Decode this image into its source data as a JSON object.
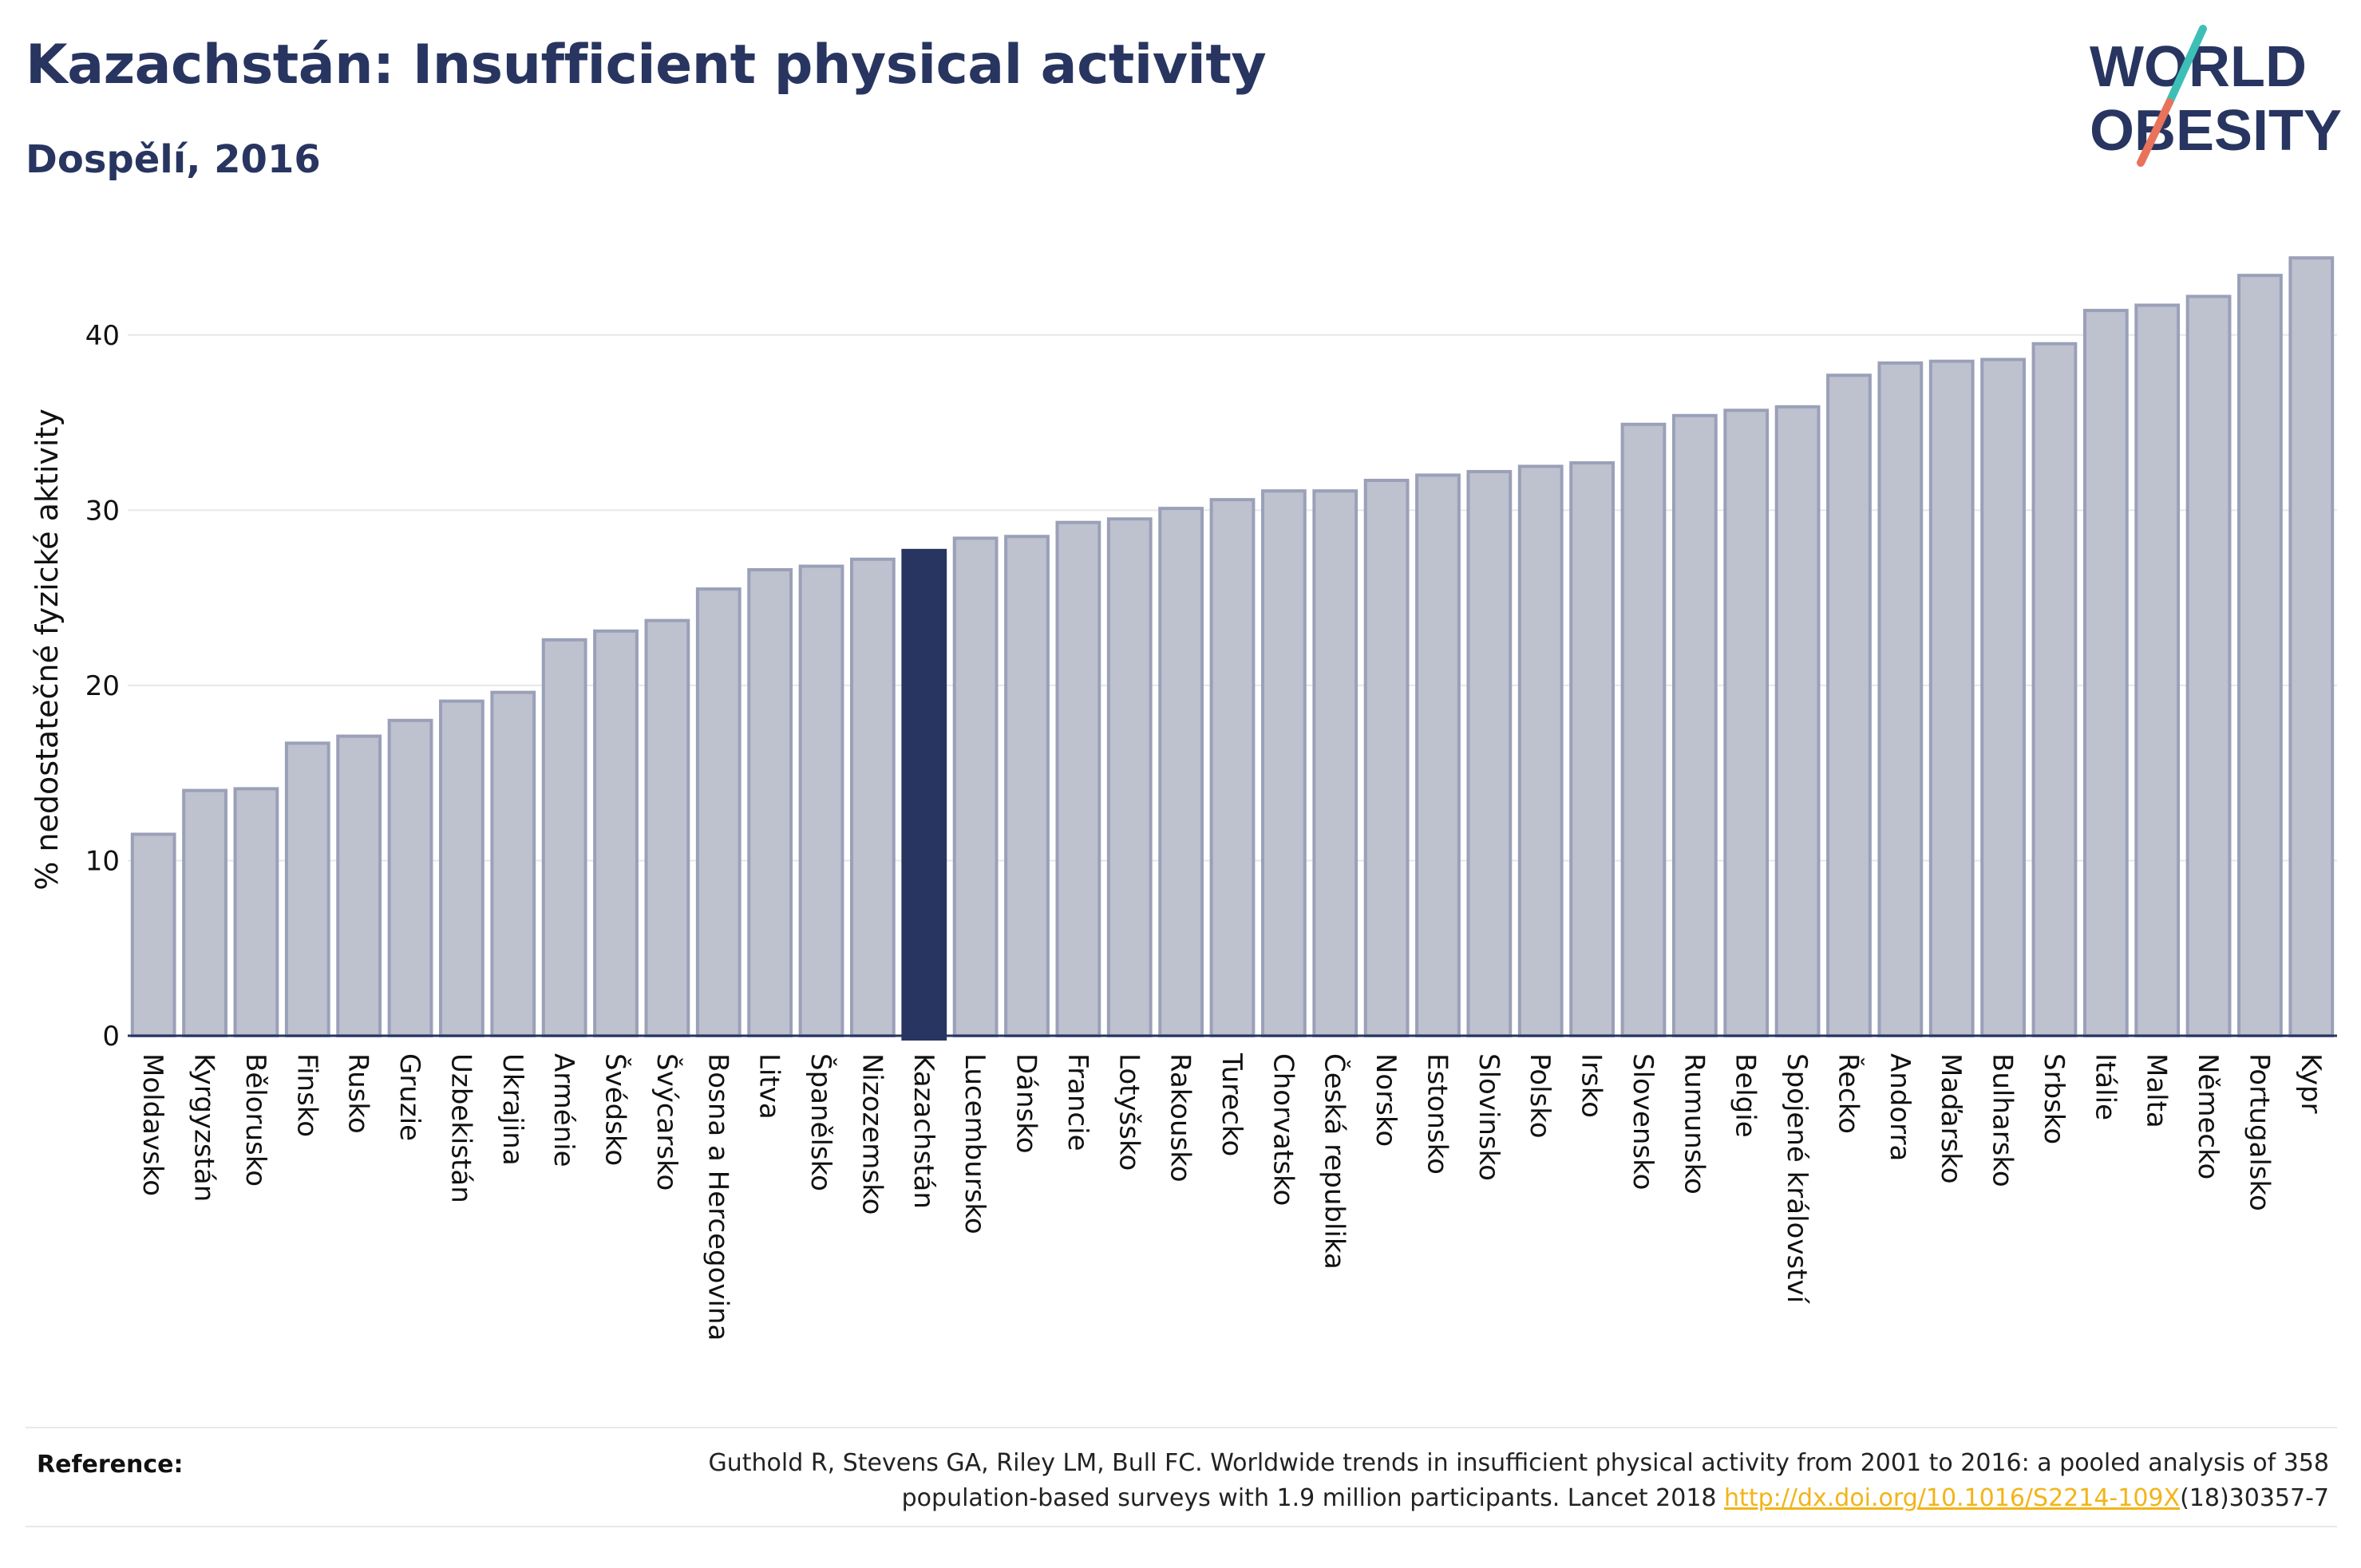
{
  "header": {
    "title": "Kazachstán: Insufficient physical activity",
    "subtitle": "Dospělí, 2016"
  },
  "logo": {
    "line1": "WORLD",
    "line2": "OBESITY",
    "colors": {
      "text": "#283560",
      "slash_top": "#3dbfb8",
      "slash_bottom": "#e8735a"
    }
  },
  "colors": {
    "bar_fill": "#bec1ce",
    "bar_stroke": "#9aa0b8",
    "highlight": "#283560",
    "grid": "#e6e7ec",
    "axis": "#283560"
  },
  "chart_data": {
    "type": "bar",
    "ylabel": "% nedostatečné fyzické aktivity",
    "ylim": [
      0,
      45
    ],
    "yticks": [
      0,
      10,
      20,
      30,
      40
    ],
    "grid": true,
    "highlight": "Kazachstán",
    "categories": [
      "Moldavsko",
      "Kyrgyzstán",
      "Bělorusko",
      "Finsko",
      "Rusko",
      "Gruzie",
      "Uzbekistán",
      "Ukrajina",
      "Arménie",
      "Švédsko",
      "Švýcarsko",
      "Bosna a Hercegovina",
      "Litva",
      "Španělsko",
      "Nizozemsko",
      "Kazachstán",
      "Lucembursko",
      "Dánsko",
      "Francie",
      "Lotyšsko",
      "Rakousko",
      "Turecko",
      "Chorvatsko",
      "Česká republika",
      "Norsko",
      "Estonsko",
      "Slovinsko",
      "Polsko",
      "Irsko",
      "Slovensko",
      "Rumunsko",
      "Belgie",
      "Spojené království",
      "Řecko",
      "Andorra",
      "Maďarsko",
      "Bulharsko",
      "Srbsko",
      "Itálie",
      "Malta",
      "Německo",
      "Portugalsko",
      "Kypr"
    ],
    "values": [
      11.5,
      14.0,
      14.1,
      16.7,
      17.1,
      18.0,
      19.1,
      19.6,
      22.6,
      23.1,
      23.7,
      25.5,
      26.6,
      26.8,
      27.2,
      27.7,
      28.4,
      28.5,
      29.3,
      29.5,
      30.1,
      30.6,
      31.1,
      31.1,
      31.7,
      32.0,
      32.2,
      32.5,
      32.7,
      34.9,
      35.4,
      35.7,
      35.9,
      37.7,
      38.4,
      38.5,
      38.6,
      39.5,
      41.4,
      41.7,
      42.2,
      43.4,
      44.4
    ]
  },
  "reference": {
    "label": "Reference:",
    "text1": "Guthold R, Stevens GA, Riley LM, Bull FC. Worldwide trends in insufficient physical activity from 2001 to 2016: a pooled analysis of 358",
    "text2_prefix": "population-based surveys with 1.9 million participants. Lancet 2018 ",
    "link": "http://dx.doi.org/10.1016/S2214-109X",
    "text2_suffix": "(18)30357-7"
  }
}
